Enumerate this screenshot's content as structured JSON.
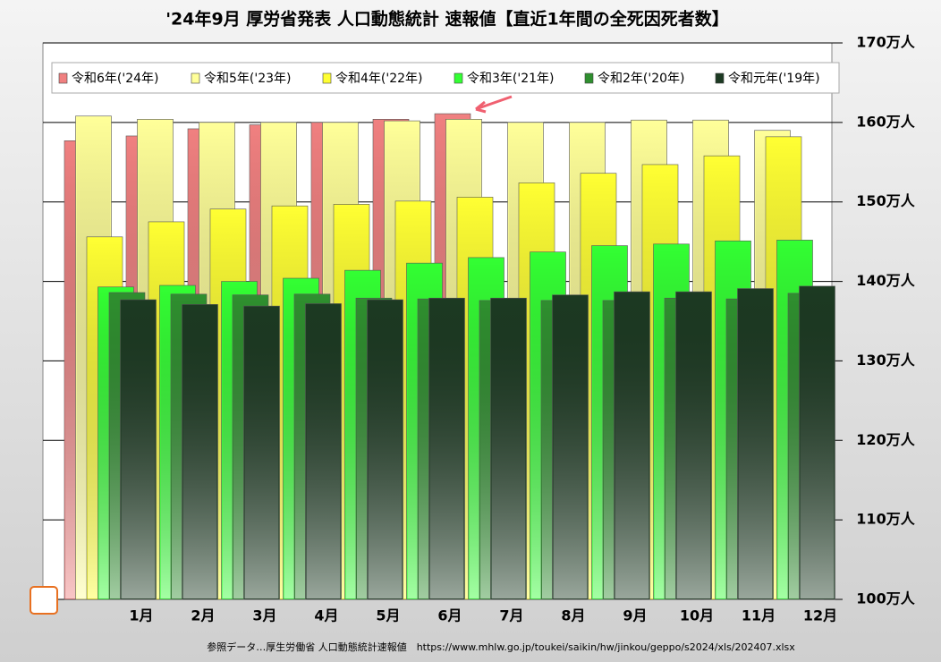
{
  "chart_data": {
    "type": "bar",
    "title": "'24年9月 厚労省発表 人口動態統計 速報値【直近1年間の全死因死者数】",
    "source": "参照データ…厚生労働省 人口動態統計速報値　https://www.mhlw.go.jp/toukei/saikin/hw/jinkou/geppo/s2024/xls/202407.xlsx",
    "categories": [
      "1月",
      "2月",
      "3月",
      "4月",
      "5月",
      "6月",
      "7月",
      "8月",
      "9月",
      "10月",
      "11月",
      "12月"
    ],
    "series": [
      {
        "name": "令和6年('24年)",
        "color": "#f08080",
        "values": [
          157.7,
          158.3,
          159.2,
          159.7,
          160.0,
          160.4,
          161.1,
          null,
          null,
          null,
          null,
          null
        ]
      },
      {
        "name": "令和5年('23年)",
        "color": "#ffff99",
        "values": [
          160.8,
          160.4,
          160.0,
          160.0,
          160.0,
          160.2,
          160.4,
          160.0,
          160.0,
          160.3,
          160.3,
          159.0
        ]
      },
      {
        "name": "令和4年('22年)",
        "color": "#ffff33",
        "values": [
          145.6,
          147.5,
          149.1,
          149.5,
          149.7,
          150.1,
          150.6,
          152.4,
          153.6,
          154.7,
          155.8,
          158.2
        ]
      },
      {
        "name": "令和3年('21年)",
        "color": "#33ff33",
        "values": [
          139.3,
          139.5,
          140.0,
          140.4,
          141.4,
          142.3,
          143.0,
          143.7,
          144.5,
          144.7,
          145.1,
          145.2
        ]
      },
      {
        "name": "令和2年('20年)",
        "color": "#2f8f2f",
        "values": [
          138.6,
          138.4,
          138.3,
          138.4,
          137.9,
          137.8,
          137.6,
          137.6,
          137.6,
          137.9,
          137.8,
          138.5
        ]
      },
      {
        "name": "令和元年('19年)",
        "color": "#1c3a22",
        "values": [
          137.7,
          137.1,
          136.9,
          137.2,
          137.7,
          137.9,
          137.9,
          138.3,
          138.7,
          138.7,
          139.1,
          139.4
        ]
      }
    ],
    "ylim": [
      100,
      170
    ],
    "yticks": [
      {
        "value": 100,
        "label": "100万人"
      },
      {
        "value": 110,
        "label": "110万人"
      },
      {
        "value": 120,
        "label": "120万人"
      },
      {
        "value": 130,
        "label": "130万人"
      },
      {
        "value": 140,
        "label": "140万人"
      },
      {
        "value": 150,
        "label": "150万人"
      },
      {
        "value": 160,
        "label": "160万人"
      },
      {
        "value": 170,
        "label": "170万人"
      }
    ],
    "grid": true
  }
}
